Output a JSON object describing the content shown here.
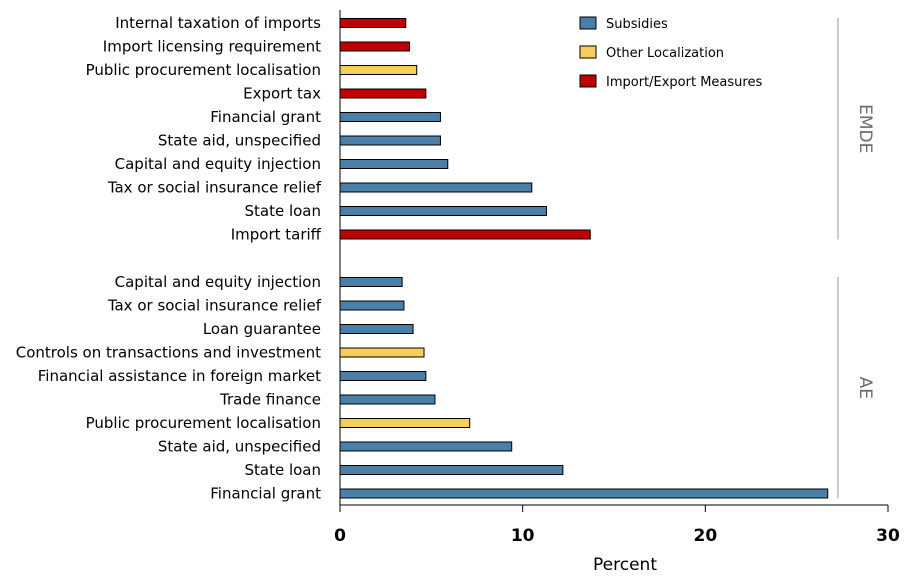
{
  "chart_data": {
    "type": "bar",
    "orientation": "horizontal",
    "xlabel": "Percent",
    "xlim": [
      0,
      30
    ],
    "xticks": [
      0,
      10,
      20,
      30
    ],
    "grid": false,
    "legend_position": "top-right",
    "legend": [
      {
        "key": "subsidies",
        "label": "Subsidies",
        "color": "#4a7fa7"
      },
      {
        "key": "localization",
        "label": "Other Localization",
        "color": "#f7cd5c"
      },
      {
        "key": "importexport",
        "label": "Import/Export Measures",
        "color": "#c00000"
      }
    ],
    "groups": [
      {
        "label": "EMDE",
        "bars": [
          {
            "category": "Internal taxation of imports",
            "value": 3.6,
            "type": "importexport"
          },
          {
            "category": "Import licensing requirement",
            "value": 3.8,
            "type": "importexport"
          },
          {
            "category": "Public procurement localisation",
            "value": 4.2,
            "type": "localization"
          },
          {
            "category": "Export tax",
            "value": 4.7,
            "type": "importexport"
          },
          {
            "category": "Financial grant",
            "value": 5.5,
            "type": "subsidies"
          },
          {
            "category": "State aid, unspecified",
            "value": 5.5,
            "type": "subsidies"
          },
          {
            "category": "Capital and equity injection",
            "value": 5.9,
            "type": "subsidies"
          },
          {
            "category": "Tax or social insurance relief",
            "value": 10.5,
            "type": "subsidies"
          },
          {
            "category": "State loan",
            "value": 11.3,
            "type": "subsidies"
          },
          {
            "category": "Import tariff",
            "value": 13.7,
            "type": "importexport"
          }
        ]
      },
      {
        "label": "AE",
        "bars": [
          {
            "category": "Capital and equity injection",
            "value": 3.4,
            "type": "subsidies"
          },
          {
            "category": "Tax or social insurance relief",
            "value": 3.5,
            "type": "subsidies"
          },
          {
            "category": "Loan guarantee",
            "value": 4.0,
            "type": "subsidies"
          },
          {
            "category": "Controls on transactions and investment",
            "value": 4.6,
            "type": "localization"
          },
          {
            "category": "Financial assistance in foreign market",
            "value": 4.7,
            "type": "subsidies"
          },
          {
            "category": "Trade finance",
            "value": 5.2,
            "type": "subsidies"
          },
          {
            "category": "Public procurement localisation",
            "value": 7.1,
            "type": "localization"
          },
          {
            "category": "State aid, unspecified",
            "value": 9.4,
            "type": "subsidies"
          },
          {
            "category": "State loan",
            "value": 12.2,
            "type": "subsidies"
          },
          {
            "category": "Financial grant",
            "value": 26.7,
            "type": "subsidies"
          }
        ]
      }
    ]
  }
}
